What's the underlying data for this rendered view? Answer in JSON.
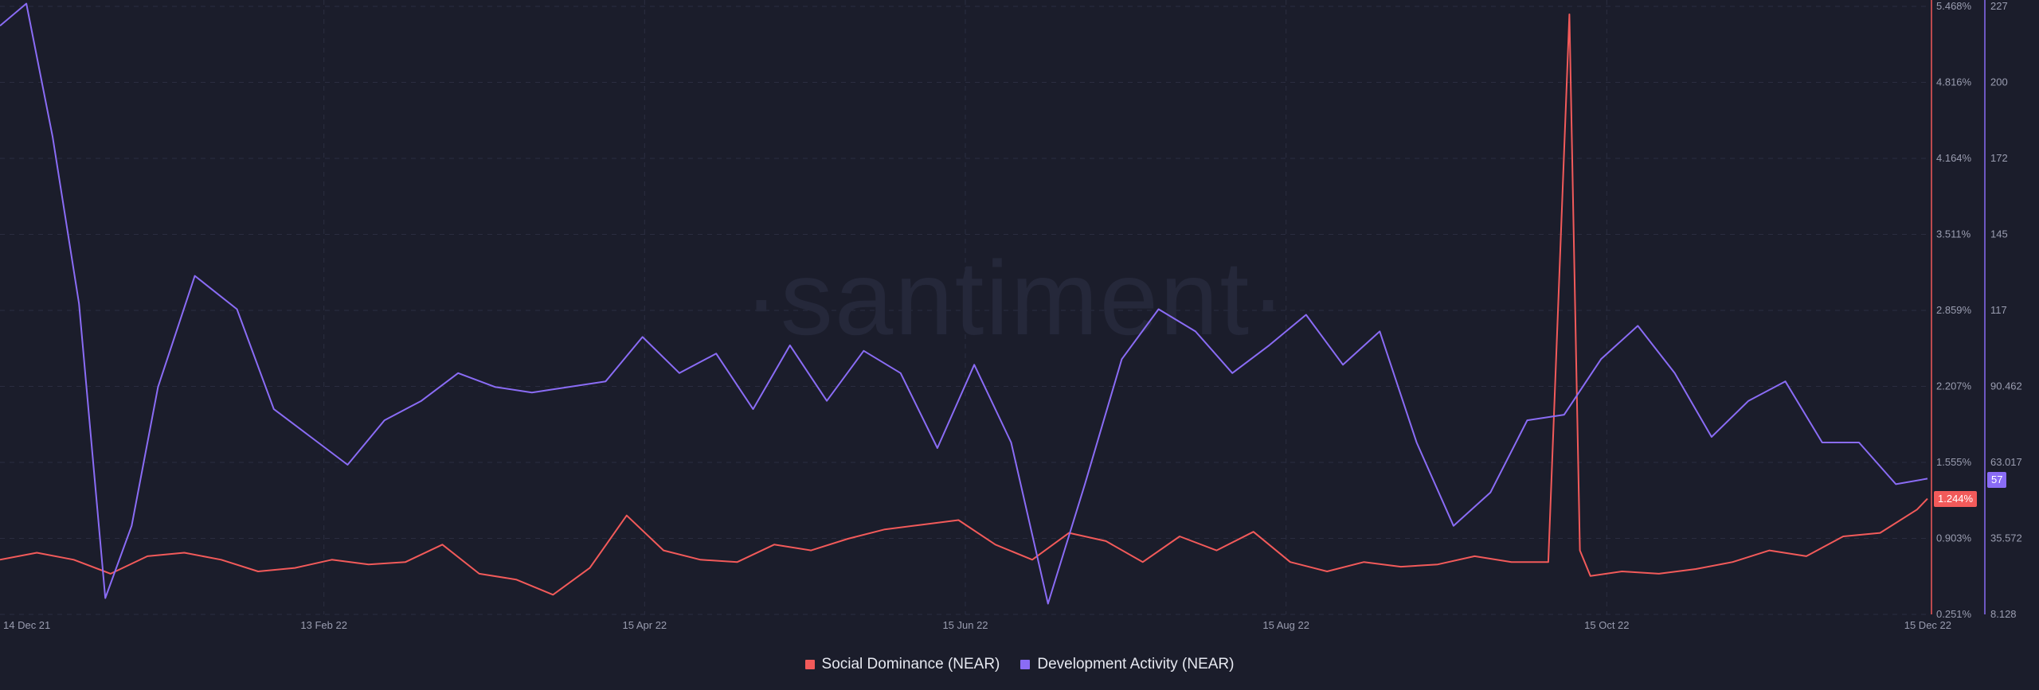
{
  "chart_data": {
    "type": "line",
    "title": "",
    "watermark": "·santiment·",
    "x_ticks": [
      "14 Dec 21",
      "13 Feb 22",
      "15 Apr 22",
      "15 Jun 22",
      "15 Aug 22",
      "15 Oct 22",
      "15 Dec 22"
    ],
    "x_range": [
      "2021-12-14",
      "2022-12-15"
    ],
    "y_left_unit": "% social dominance",
    "y_left_ticks": [
      "5.468%",
      "4.816%",
      "4.164%",
      "3.511%",
      "2.859%",
      "2.207%",
      "1.555%",
      "0.903%",
      "0.251%"
    ],
    "y_left_range": [
      0.251,
      5.468
    ],
    "y_right_ticks": [
      "227",
      "200",
      "172",
      "145",
      "117",
      "90.462",
      "63.017",
      "35.572",
      "8.128"
    ],
    "y_right_range": [
      8.128,
      227
    ],
    "series": [
      {
        "name": "Social Dominance (NEAR)",
        "axis": "left",
        "color": "#f25a5a",
        "last_value_label": "1.244%",
        "dates": [
          "2021-12-14",
          "2021-12-21",
          "2021-12-28",
          "2022-01-04",
          "2022-01-11",
          "2022-01-18",
          "2022-01-25",
          "2022-02-01",
          "2022-02-08",
          "2022-02-15",
          "2022-02-22",
          "2022-03-01",
          "2022-03-08",
          "2022-03-15",
          "2022-03-22",
          "2022-03-29",
          "2022-04-05",
          "2022-04-12",
          "2022-04-19",
          "2022-04-26",
          "2022-05-03",
          "2022-05-10",
          "2022-05-17",
          "2022-05-24",
          "2022-05-31",
          "2022-06-07",
          "2022-06-14",
          "2022-06-21",
          "2022-06-28",
          "2022-07-05",
          "2022-07-12",
          "2022-07-19",
          "2022-07-26",
          "2022-08-02",
          "2022-08-09",
          "2022-08-16",
          "2022-08-23",
          "2022-08-30",
          "2022-09-06",
          "2022-09-13",
          "2022-09-20",
          "2022-09-27",
          "2022-10-04",
          "2022-10-08",
          "2022-10-10",
          "2022-10-12",
          "2022-10-18",
          "2022-10-25",
          "2022-11-01",
          "2022-11-08",
          "2022-11-15",
          "2022-11-22",
          "2022-11-29",
          "2022-12-06",
          "2022-12-13",
          "2022-12-15"
        ],
        "values": [
          0.72,
          0.78,
          0.72,
          0.6,
          0.75,
          0.78,
          0.72,
          0.62,
          0.65,
          0.72,
          0.68,
          0.7,
          0.85,
          0.6,
          0.55,
          0.42,
          0.65,
          1.1,
          0.8,
          0.72,
          0.7,
          0.85,
          0.8,
          0.9,
          0.98,
          1.02,
          1.06,
          0.85,
          0.72,
          0.95,
          0.88,
          0.7,
          0.92,
          0.8,
          0.96,
          0.7,
          0.62,
          0.7,
          0.66,
          0.68,
          0.75,
          0.7,
          0.7,
          5.4,
          0.8,
          0.58,
          0.62,
          0.6,
          0.64,
          0.7,
          0.8,
          0.75,
          0.92,
          0.95,
          1.15,
          1.244
        ]
      },
      {
        "name": "Development Activity (NEAR)",
        "axis": "right",
        "color": "#8a6cf5",
        "last_value_label": "57",
        "dates": [
          "2021-12-14",
          "2021-12-19",
          "2021-12-24",
          "2021-12-29",
          "2022-01-03",
          "2022-01-08",
          "2022-01-13",
          "2022-01-20",
          "2022-01-28",
          "2022-02-04",
          "2022-02-11",
          "2022-02-18",
          "2022-02-25",
          "2022-03-04",
          "2022-03-11",
          "2022-03-18",
          "2022-03-25",
          "2022-04-01",
          "2022-04-08",
          "2022-04-15",
          "2022-04-22",
          "2022-04-29",
          "2022-05-06",
          "2022-05-13",
          "2022-05-20",
          "2022-05-27",
          "2022-06-03",
          "2022-06-10",
          "2022-06-17",
          "2022-06-24",
          "2022-07-01",
          "2022-07-08",
          "2022-07-15",
          "2022-07-22",
          "2022-07-29",
          "2022-08-05",
          "2022-08-12",
          "2022-08-19",
          "2022-08-26",
          "2022-09-02",
          "2022-09-09",
          "2022-09-16",
          "2022-09-23",
          "2022-09-30",
          "2022-10-07",
          "2022-10-14",
          "2022-10-21",
          "2022-10-28",
          "2022-11-04",
          "2022-11-11",
          "2022-11-18",
          "2022-11-25",
          "2022-12-02",
          "2022-12-09",
          "2022-12-15"
        ],
        "values": [
          220,
          228,
          180,
          120,
          14,
          40,
          90,
          130,
          118,
          82,
          72,
          62,
          78,
          85,
          95,
          90,
          88,
          90,
          92,
          108,
          95,
          102,
          82,
          105,
          85,
          103,
          95,
          68,
          98,
          70,
          12,
          55,
          100,
          118,
          110,
          95,
          105,
          116,
          98,
          110,
          70,
          40,
          52,
          78,
          80,
          100,
          112,
          95,
          72,
          85,
          92,
          70,
          70,
          55,
          57
        ]
      }
    ],
    "legend_placement": "bottom-center"
  }
}
